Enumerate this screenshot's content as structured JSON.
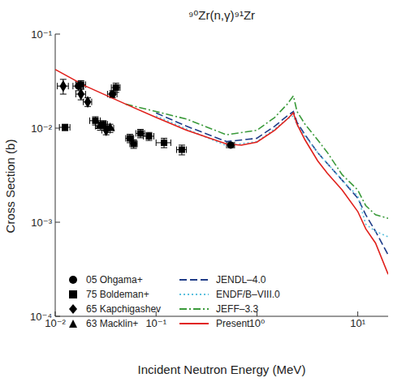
{
  "chart_data": {
    "type": "line",
    "title": "⁹⁰Zr(n,γ)⁹¹Zr",
    "x_label": "Incident Neutron Energy (MeV)",
    "y_label": "Cross Section (b)",
    "log": true,
    "grid": false,
    "legend": "lower left",
    "xlim": [
      0.01,
      20
    ],
    "ylim": [
      0.0001,
      0.1
    ],
    "xticks": [
      {
        "value": 0.01,
        "label": "10⁻²"
      },
      {
        "value": 0.1,
        "label": "10⁻¹"
      },
      {
        "value": 1,
        "label": "10⁰"
      },
      {
        "value": 10,
        "label": "10¹"
      }
    ],
    "yticks": [
      {
        "value": 0.0001,
        "label": "10⁻⁴"
      },
      {
        "value": 0.001,
        "label": "10⁻³"
      },
      {
        "value": 0.01,
        "label": "10⁻²"
      },
      {
        "value": 0.1,
        "label": "10⁻¹"
      }
    ],
    "series": [
      {
        "name": "05 Ohgama+",
        "type": "scatter",
        "marker": "circle",
        "color": "#000000",
        "x": [
          0.017,
          0.037,
          0.55
        ],
        "values": [
          0.028,
          0.023,
          0.0066
        ],
        "x_err": [
          0.002,
          0.004,
          0.05
        ],
        "y_err": [
          0.003,
          0.002,
          0.0004
        ]
      },
      {
        "name": "75 Boldeman+",
        "type": "scatter",
        "marker": "square",
        "color": "#000000",
        "x": [
          0.0125,
          0.018,
          0.025,
          0.03,
          0.04,
          0.055,
          0.06,
          0.07,
          0.085,
          0.12,
          0.18
        ],
        "values": [
          0.0102,
          0.029,
          0.012,
          0.011,
          0.027,
          0.0078,
          0.0068,
          0.0088,
          0.0082,
          0.007,
          0.0059
        ],
        "x_err": [
          0.0015,
          0.002,
          0.003,
          0.003,
          0.004,
          0.005,
          0.005,
          0.007,
          0.01,
          0.02,
          0.02
        ],
        "y_err": [
          0.0008,
          0.003,
          0.0012,
          0.001,
          0.003,
          0.0008,
          0.0007,
          0.0009,
          0.0008,
          0.0008,
          0.0007
        ]
      },
      {
        "name": "65 Kapchigashev",
        "type": "scatter",
        "marker": "diamond",
        "color": "#000000",
        "x": [
          0.012,
          0.018,
          0.021,
          0.032
        ],
        "values": [
          0.028,
          0.023,
          0.019,
          0.0095
        ],
        "x_err": [
          0.0015,
          0.002,
          0.002,
          0.003
        ],
        "y_err": [
          0.005,
          0.003,
          0.002,
          0.001
        ]
      },
      {
        "name": "63 Macklin+",
        "type": "scatter",
        "marker": "triangle",
        "color": "#000000",
        "x": [
          0.028,
          0.035
        ],
        "values": [
          0.0105,
          0.01
        ],
        "x_err": [
          0.003,
          0.003
        ],
        "y_err": [
          0.001,
          0.001
        ]
      },
      {
        "name": "JENDL–4.0",
        "type": "line",
        "line_style": "dashed",
        "color": "#1f3c88",
        "x": [
          0.1,
          0.2,
          0.5,
          1,
          1.5,
          2,
          2.3,
          2.5,
          3,
          4,
          5,
          7,
          10,
          12,
          15,
          20
        ],
        "values": [
          0.0145,
          0.0105,
          0.0072,
          0.0078,
          0.0105,
          0.0135,
          0.015,
          0.0115,
          0.0085,
          0.0055,
          0.0042,
          0.0028,
          0.0018,
          0.0012,
          0.0008,
          0.00045
        ]
      },
      {
        "name": "ENDF/B–VIII.0",
        "type": "line",
        "line_style": "dotted",
        "color": "#5bc0de",
        "x": [
          0.1,
          0.2,
          0.5,
          1,
          1.5,
          2,
          2.3,
          2.5,
          3,
          4,
          5,
          7,
          10,
          12,
          15,
          20
        ],
        "values": [
          0.0135,
          0.0098,
          0.0065,
          0.0072,
          0.0098,
          0.0125,
          0.0135,
          0.0108,
          0.0082,
          0.0055,
          0.0042,
          0.0028,
          0.0019,
          0.00095,
          0.0008,
          0.0007
        ]
      },
      {
        "name": "JEFF–3.3",
        "type": "line",
        "line_style": "dashdot",
        "color": "#3a9a3a",
        "x": [
          0.05,
          0.1,
          0.2,
          0.5,
          1,
          1.5,
          2,
          2.3,
          2.5,
          3,
          4,
          5,
          7,
          10,
          12,
          15,
          20
        ],
        "values": [
          0.018,
          0.015,
          0.0125,
          0.0085,
          0.0095,
          0.013,
          0.018,
          0.022,
          0.015,
          0.011,
          0.0075,
          0.0055,
          0.0032,
          0.0022,
          0.0015,
          0.0012,
          0.0011
        ]
      },
      {
        "name": "Present",
        "type": "line",
        "line_style": "solid",
        "color": "#e0201b",
        "x": [
          0.01,
          0.02,
          0.05,
          0.1,
          0.2,
          0.5,
          0.7,
          1,
          1.5,
          2,
          2.3,
          2.5,
          3,
          4,
          5,
          7,
          10,
          12,
          15,
          20
        ],
        "values": [
          0.042,
          0.028,
          0.018,
          0.013,
          0.0095,
          0.0068,
          0.0066,
          0.0071,
          0.0095,
          0.0125,
          0.0145,
          0.011,
          0.0075,
          0.0045,
          0.0033,
          0.0022,
          0.0013,
          0.00085,
          0.0006,
          0.00028
        ]
      }
    ]
  }
}
